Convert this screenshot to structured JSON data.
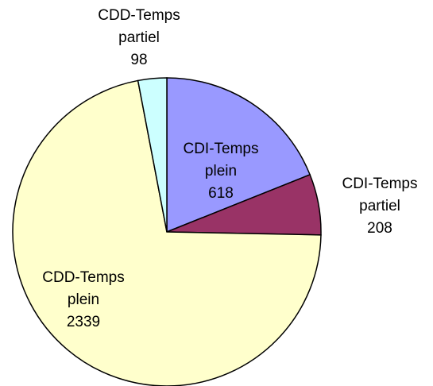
{
  "chart_data": {
    "type": "pie",
    "categories": [
      "CDI-Temps plein",
      "CDI-Temps partiel",
      "CDD-Temps plein",
      "CDD-Temps partiel"
    ],
    "values": [
      618,
      208,
      2339,
      98
    ],
    "colors": [
      "#9999ff",
      "#993366",
      "#ffffcc",
      "#ccffff"
    ]
  }
}
